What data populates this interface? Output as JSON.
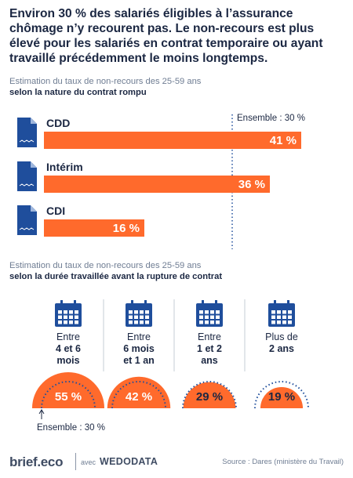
{
  "headline": "Environ 30 % des salariés éligibles à l’assurance chômage n’y recourent pas. Le non-recours est plus élevé pour les salariés en contrat temporaire ou ayant travaillé précédemment le moins longtemps.",
  "colors": {
    "accent": "#ff6a2c",
    "navy": "#1f4e9c",
    "text": "#1b2742",
    "muted": "#6f7d93"
  },
  "section1": {
    "subtitle_light": "Estimation du taux de non-recours des 25-59 ans",
    "subtitle_strong": "selon la nature du contrat rompu"
  },
  "section2": {
    "subtitle_light": "Estimation du taux de non-recours des 25-59 ans",
    "subtitle_strong": "selon la durée travaillée avant la rupture de contrat"
  },
  "chart_data": [
    {
      "type": "bar",
      "orientation": "horizontal",
      "categories": [
        "CDD",
        "Intérim",
        "CDI"
      ],
      "values": [
        41,
        36,
        16
      ],
      "value_labels": [
        "41 %",
        "36 %",
        "16 %"
      ],
      "unit": "%",
      "reference": {
        "value": 30,
        "label": "Ensemble : 30 %"
      },
      "category_icon": "document-icon"
    },
    {
      "type": "pie",
      "style": "half-circle gauges",
      "categories": [
        "Entre 4 et 6 mois",
        "Entre 6 mois et 1 an",
        "Entre 1 et 2 ans",
        "Plus de 2 ans"
      ],
      "category_lines": [
        [
          "Entre",
          "4 et 6",
          "mois"
        ],
        [
          "Entre",
          "6 mois",
          "et 1 an"
        ],
        [
          "Entre",
          "1 et 2",
          "ans"
        ],
        [
          "Plus de",
          "2 ans"
        ]
      ],
      "values": [
        55,
        42,
        29,
        19
      ],
      "value_labels": [
        "55 %",
        "42 %",
        "29 %",
        "19 %"
      ],
      "unit": "%",
      "reference": {
        "value": 30,
        "label": "Ensemble : 30 %"
      },
      "category_icon": "calendar-icon"
    }
  ],
  "footer": {
    "logo": "brief.eco",
    "with": "avec",
    "partner": "WEDODATA",
    "source": "Source : Dares (ministère du Travail)"
  }
}
